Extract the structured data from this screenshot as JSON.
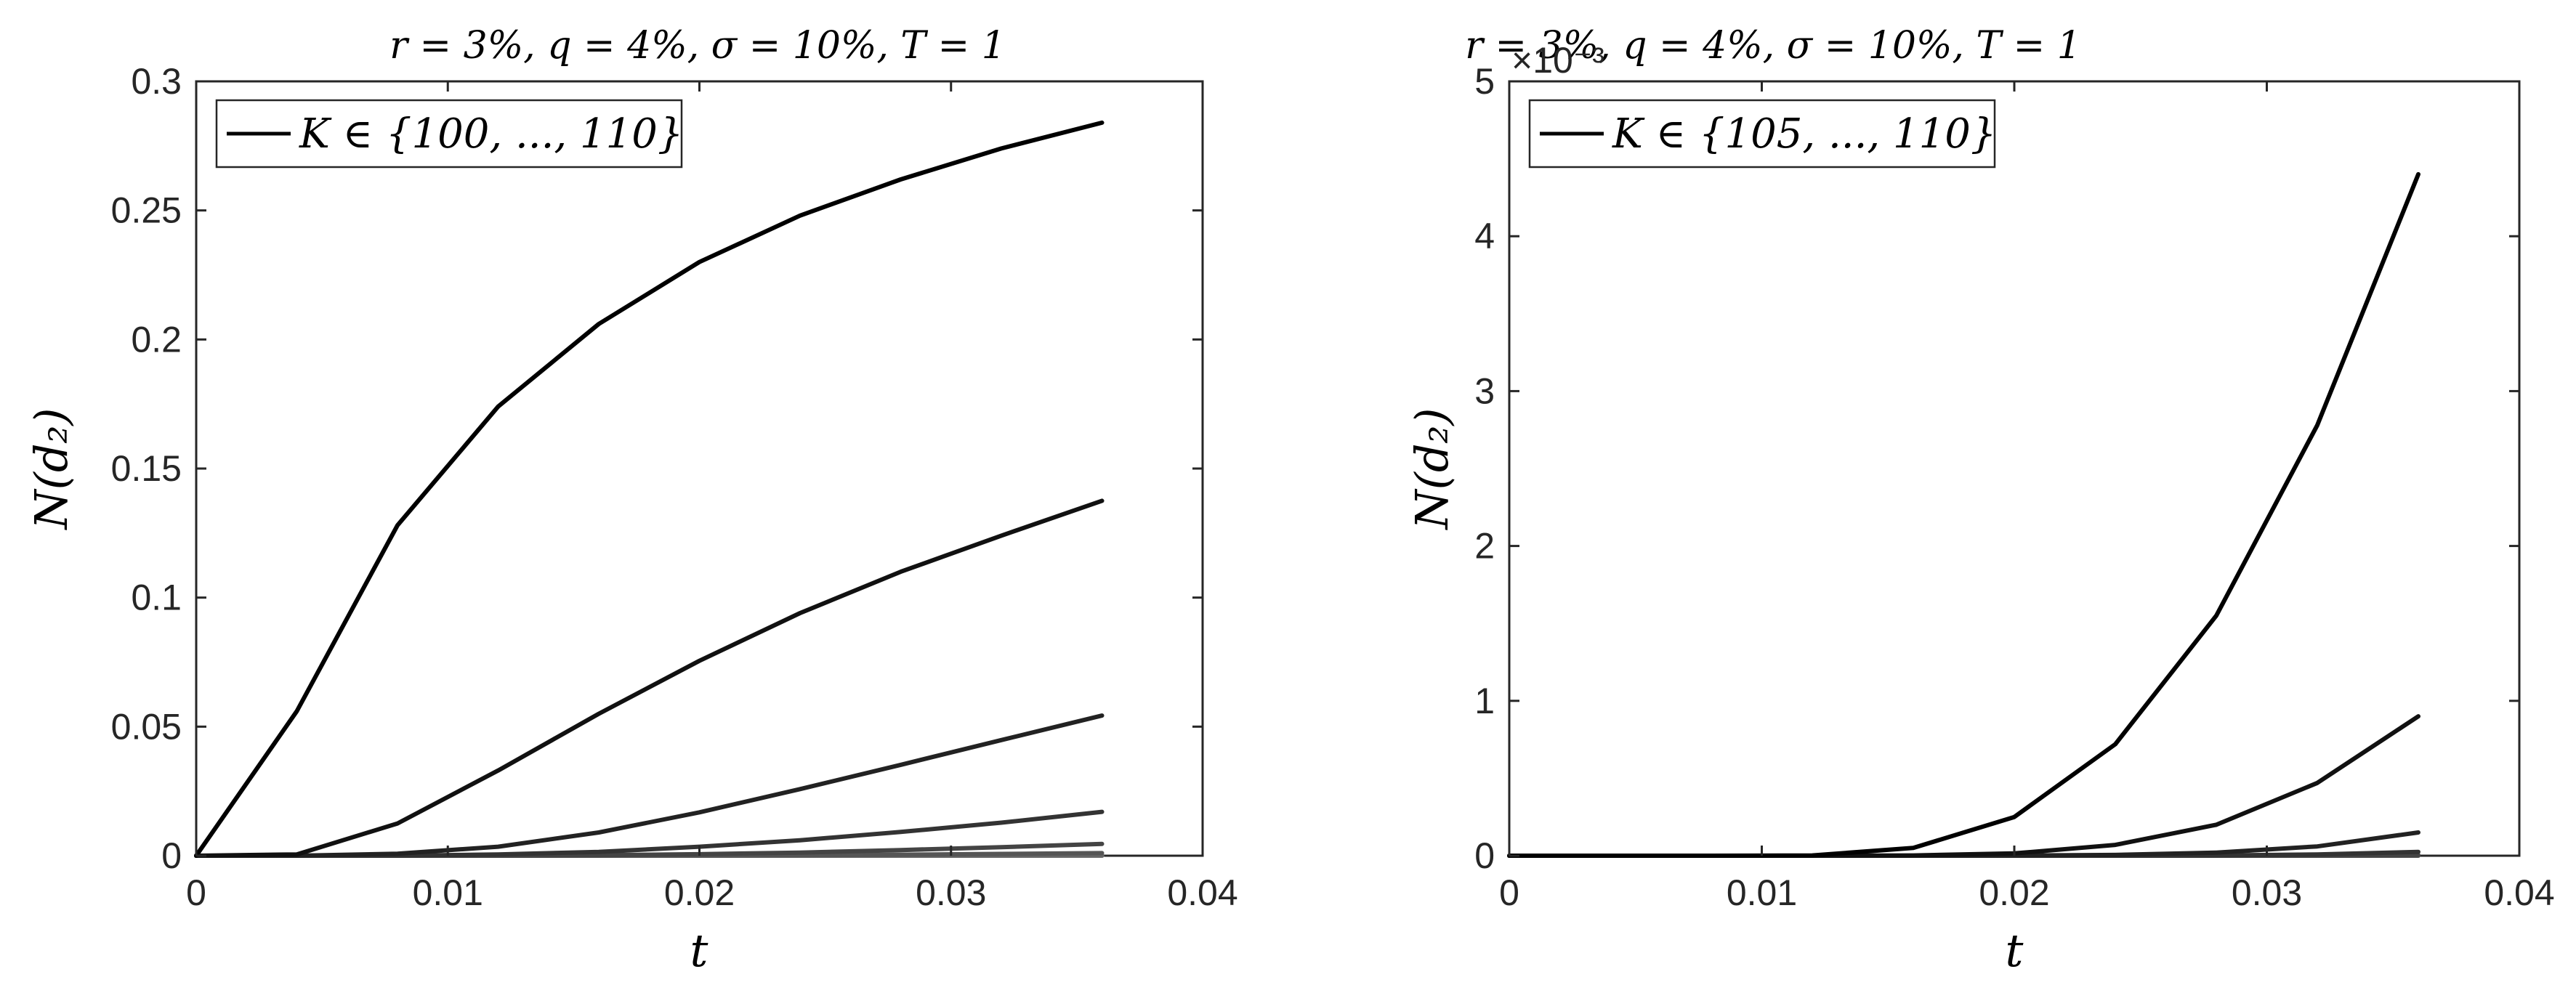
{
  "chart_data": [
    {
      "type": "line",
      "title": "r = 3%, q = 4%, σ = 10%, T = 1",
      "xlabel": "t",
      "ylabel": "N(d₂)",
      "xlim": [
        0,
        0.04
      ],
      "ylim": [
        0,
        0.3
      ],
      "xticks": [
        "0",
        "0.01",
        "0.02",
        "0.03",
        "0.04"
      ],
      "yticks": [
        "0",
        "0.05",
        "0.1",
        "0.15",
        "0.2",
        "0.25",
        "0.3"
      ],
      "y_exponent": "",
      "legend": {
        "label": "K ∈ {100, ..., 110}",
        "position": "top-left"
      },
      "grid": false,
      "x": [
        0,
        0.004,
        0.008,
        0.012,
        0.016,
        0.02,
        0.024,
        0.028,
        0.032,
        0.036
      ],
      "series": [
        {
          "color": "#000000",
          "values": [
            0,
            0.056,
            0.128,
            0.174,
            0.206,
            0.23,
            0.248,
            0.262,
            0.274,
            0.284
          ]
        },
        {
          "color": "#111111",
          "values": [
            0,
            0.0005,
            0.0125,
            0.033,
            0.055,
            0.0755,
            0.094,
            0.11,
            0.124,
            0.1375
          ]
        },
        {
          "color": "#222222",
          "values": [
            0,
            0,
            0.0008,
            0.0035,
            0.009,
            0.0168,
            0.0258,
            0.0352,
            0.0448,
            0.0543
          ]
        },
        {
          "color": "#333333",
          "values": [
            0,
            0,
            0,
            0.0005,
            0.0015,
            0.0035,
            0.006,
            0.0092,
            0.0128,
            0.017
          ]
        },
        {
          "color": "#444444",
          "values": [
            0,
            0,
            0,
            0,
            0.0002,
            0.0006,
            0.0012,
            0.0022,
            0.0033,
            0.0046
          ]
        },
        {
          "color": "#555555",
          "values": [
            0,
            0,
            0,
            0,
            0,
            0.0001,
            0.0002,
            0.0004,
            0.0007,
            0.001
          ]
        },
        {
          "color": "#666666",
          "values": [
            0,
            0,
            0,
            0,
            0,
            0,
            0,
            0.0001,
            0.0001,
            0.0002
          ]
        },
        {
          "color": "#777777",
          "values": [
            0,
            0,
            0,
            0,
            0,
            0,
            0,
            0,
            0,
            0
          ]
        },
        {
          "color": "#888888",
          "values": [
            0,
            0,
            0,
            0,
            0,
            0,
            0,
            0,
            0,
            0
          ]
        },
        {
          "color": "#999999",
          "values": [
            0,
            0,
            0,
            0,
            0,
            0,
            0,
            0,
            0,
            0
          ]
        },
        {
          "color": "#aaaaaa",
          "values": [
            0,
            0,
            0,
            0,
            0,
            0,
            0,
            0,
            0,
            0
          ]
        }
      ]
    },
    {
      "type": "line",
      "title": "r = 3%, q = 4%, σ = 10%, T = 1",
      "xlabel": "t",
      "ylabel": "N(d₂)",
      "xlim": [
        0,
        0.04
      ],
      "ylim": [
        0,
        0.005
      ],
      "xticks": [
        "0",
        "0.01",
        "0.02",
        "0.03",
        "0.04"
      ],
      "yticks": [
        "0",
        "1",
        "2",
        "3",
        "4",
        "5"
      ],
      "y_exponent": "×10⁻³",
      "legend": {
        "label": "K ∈ {105, ..., 110}",
        "position": "top-left"
      },
      "grid": false,
      "x": [
        0,
        0.004,
        0.008,
        0.012,
        0.016,
        0.02,
        0.024,
        0.028,
        0.032,
        0.036
      ],
      "series": [
        {
          "color": "#000000",
          "values": [
            0,
            0,
            0,
            2e-06,
            5e-05,
            0.00025,
            0.00072,
            0.00155,
            0.00278,
            0.0044
          ]
        },
        {
          "color": "#111111",
          "values": [
            0,
            0,
            0,
            0,
            2e-06,
            1.5e-05,
            7e-05,
            0.0002,
            0.00047,
            0.0009
          ]
        },
        {
          "color": "#222222",
          "values": [
            0,
            0,
            0,
            0,
            0,
            1e-06,
            5e-06,
            2e-05,
            6e-05,
            0.00015
          ]
        },
        {
          "color": "#333333",
          "values": [
            0,
            0,
            0,
            0,
            0,
            0,
            0,
            2e-06,
            8e-06,
            2.5e-05
          ]
        },
        {
          "color": "#444444",
          "values": [
            0,
            0,
            0,
            0,
            0,
            0,
            0,
            0,
            1e-06,
            4e-06
          ]
        },
        {
          "color": "#555555",
          "values": [
            0,
            0,
            0,
            0,
            0,
            0,
            0,
            0,
            0,
            0
          ]
        }
      ]
    }
  ]
}
